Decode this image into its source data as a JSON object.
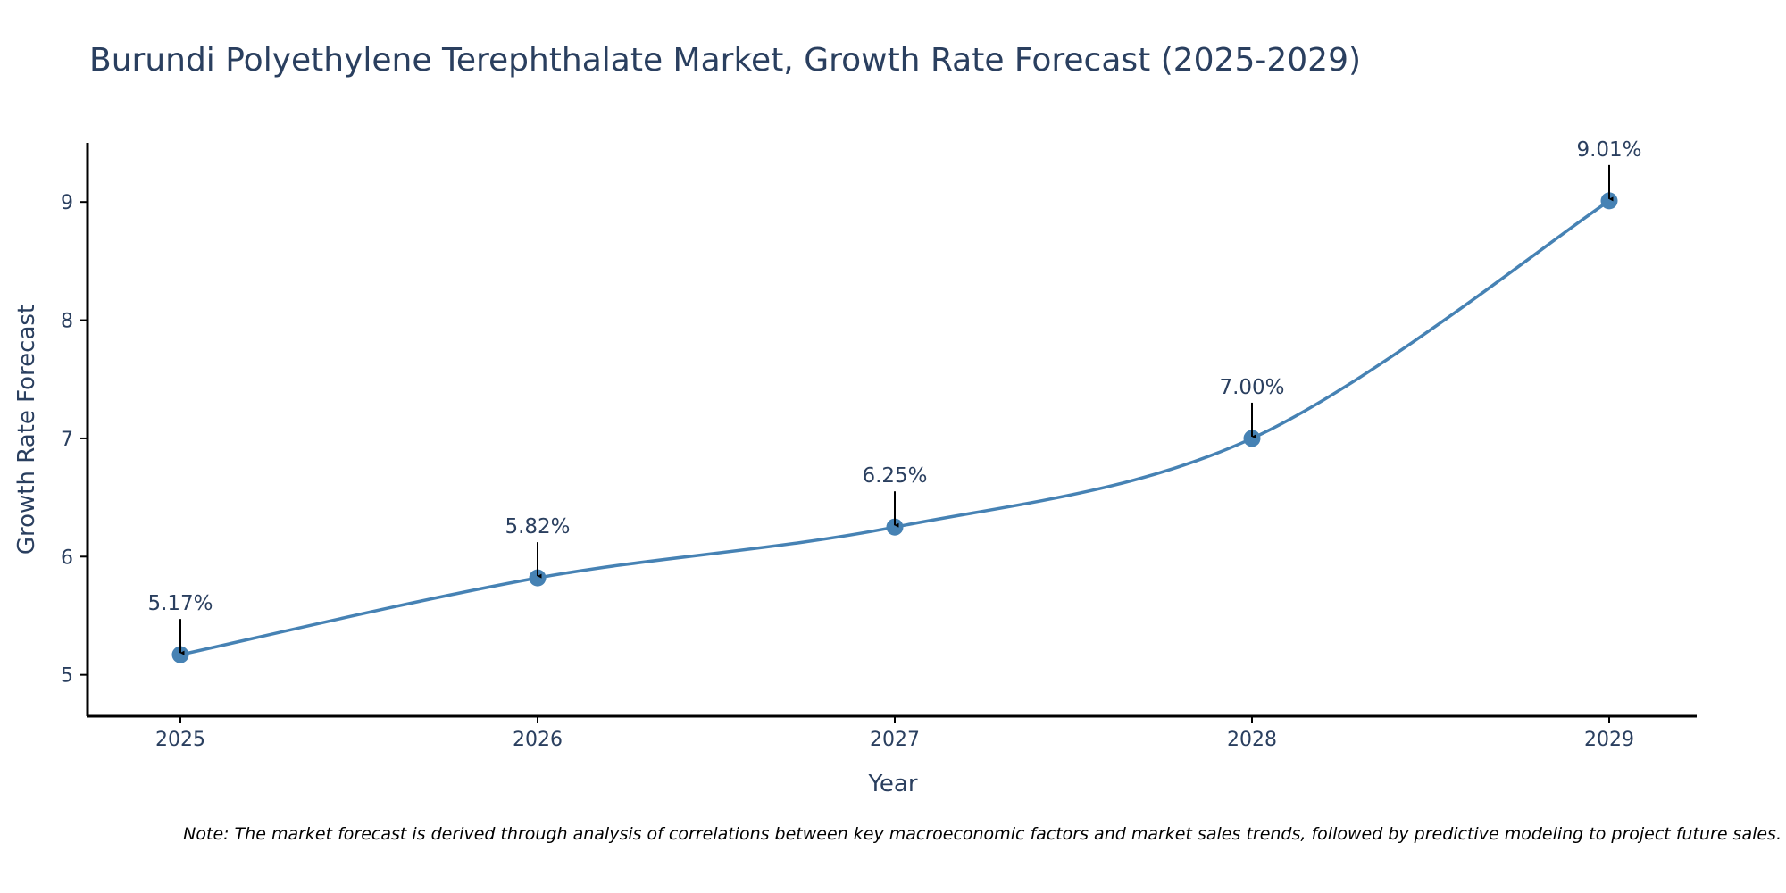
{
  "chart_data": {
    "type": "line",
    "title": "Burundi Polyethylene Terephthalate Market, Growth Rate Forecast (2025-2029)",
    "xlabel": "Year",
    "ylabel": "Growth Rate Forecast",
    "categories": [
      "2025",
      "2026",
      "2027",
      "2028",
      "2029"
    ],
    "series": [
      {
        "name": "Growth Rate Forecast",
        "values": [
          5.17,
          5.82,
          6.25,
          7.0,
          9.01
        ]
      }
    ],
    "data_labels": [
      "5.17%",
      "5.82%",
      "6.25%",
      "7.00%",
      "9.01%"
    ],
    "ylim": [
      4.65,
      9.5
    ],
    "yticks": [
      5,
      6,
      7,
      8,
      9
    ],
    "ytick_labels": [
      "5",
      "6",
      "7",
      "8",
      "9"
    ],
    "grid": false,
    "line_color": "#4682b4",
    "annotation_arrow_color": "#000000",
    "note": "Note: The market forecast is derived through analysis of correlations between key macroeconomic factors and market sales trends, followed by predictive modeling to project future sales."
  }
}
